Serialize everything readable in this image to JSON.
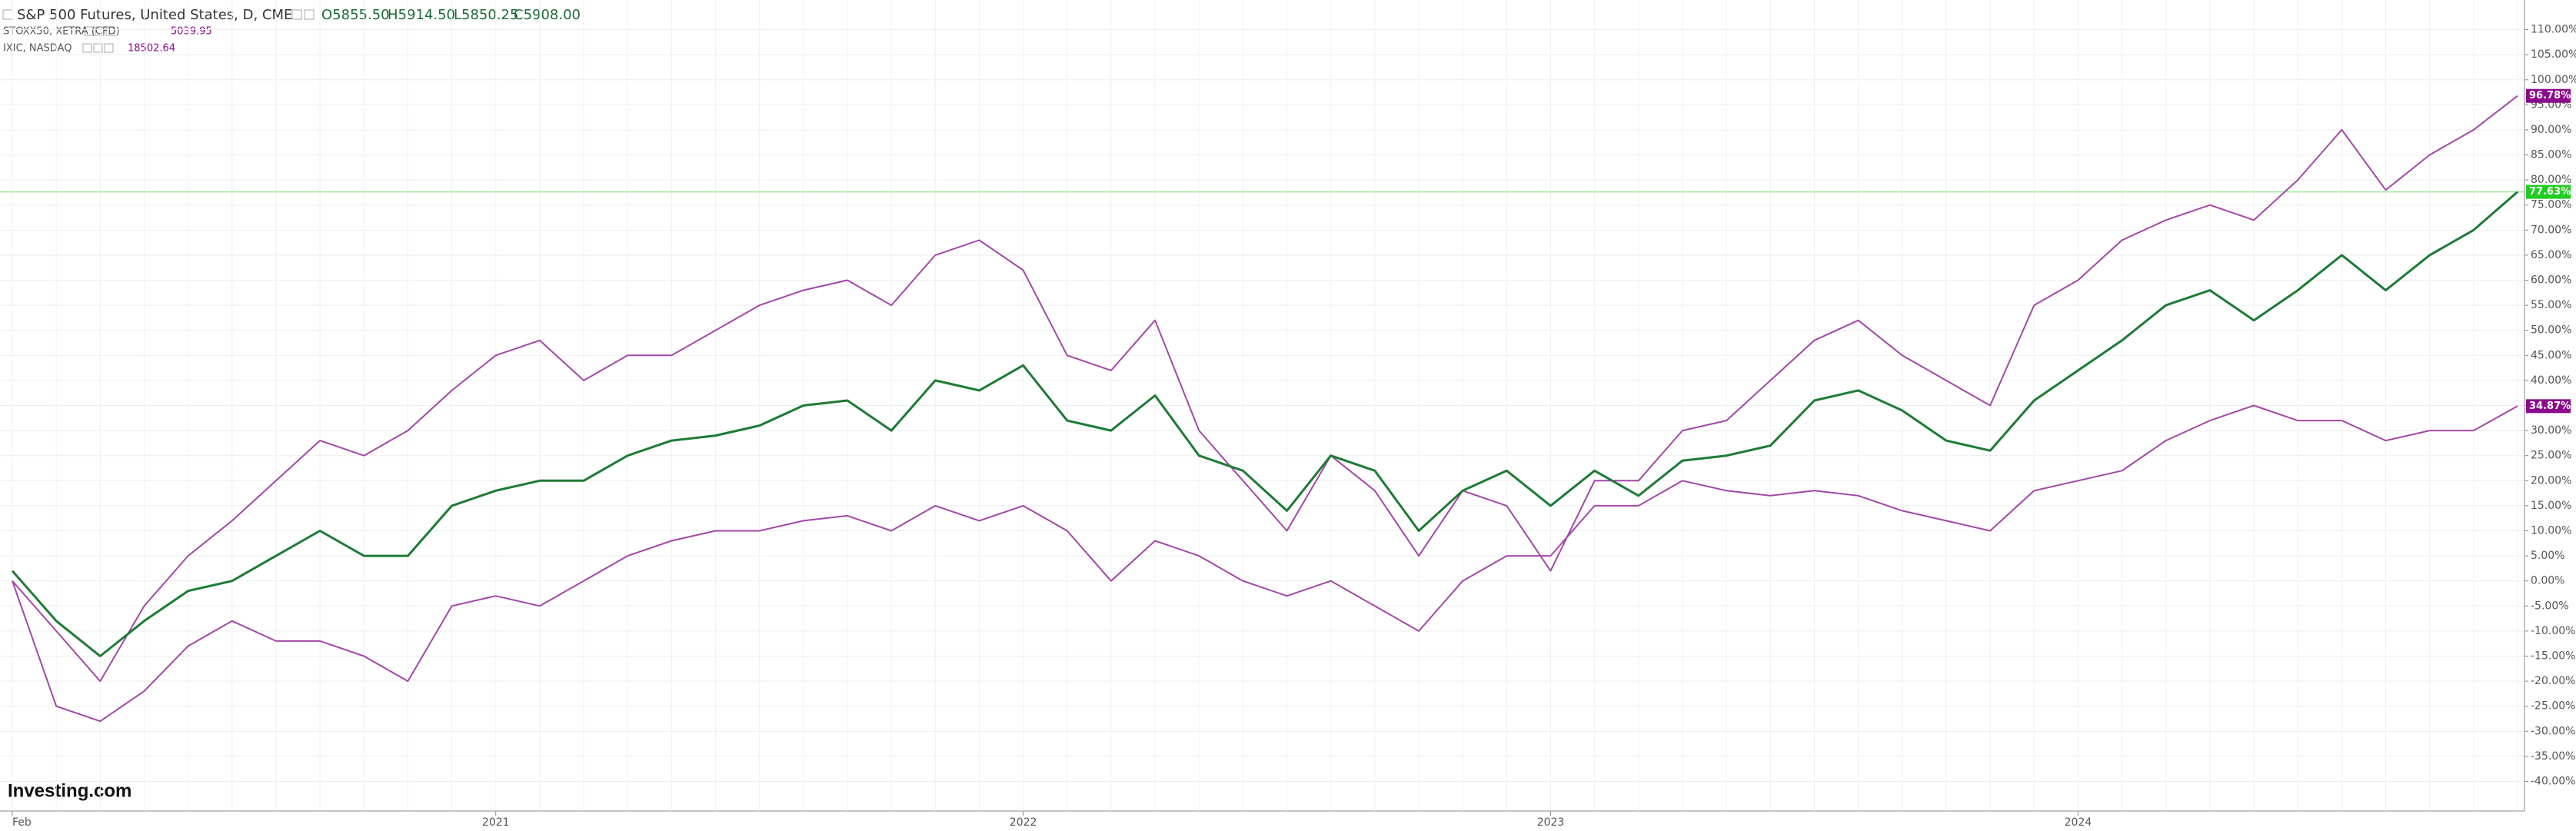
{
  "chart_data": {
    "type": "line",
    "header": {
      "main": "S&P 500 Futures, United States, D, CME",
      "quotes": [
        "O5855.50",
        "H5914.50",
        "L5850.25",
        "C5908.00"
      ]
    },
    "watermark": "Investing.com",
    "categories": [
      "Feb",
      null,
      null,
      null,
      null,
      null,
      null,
      null,
      null,
      null,
      null,
      "2021",
      null,
      null,
      null,
      null,
      null,
      null,
      null,
      null,
      null,
      null,
      null,
      "2022",
      null,
      null,
      null,
      null,
      null,
      null,
      null,
      null,
      null,
      null,
      null,
      "2023",
      null,
      null,
      null,
      null,
      null,
      null,
      null,
      null,
      null,
      null,
      null,
      "2024",
      null,
      null,
      null,
      null,
      null,
      null,
      null,
      null,
      null,
      null
    ],
    "series": [
      {
        "name": "S&P 500 Futures, United States, D, CME",
        "color": "#1e7b34",
        "values": [
          2,
          -8,
          -15,
          -8,
          -2,
          0,
          5,
          10,
          5,
          5,
          15,
          18,
          20,
          20,
          25,
          28,
          29,
          31,
          35,
          36,
          30,
          40,
          38,
          43,
          32,
          30,
          37,
          25,
          22,
          14,
          25,
          22,
          10,
          18,
          22,
          15,
          22,
          17,
          24,
          25,
          27,
          36,
          38,
          34,
          28,
          26,
          36,
          42,
          48,
          55,
          58,
          52,
          58,
          65,
          58,
          65,
          70,
          77.63
        ],
        "value_labels": [
          null,
          null,
          null,
          null,
          null,
          null,
          null,
          null,
          null,
          null,
          null,
          null,
          null,
          null,
          null,
          null,
          null,
          null,
          null,
          null,
          null,
          null,
          null,
          null,
          null,
          null,
          null,
          null,
          null,
          null,
          null,
          null,
          null,
          null,
          null,
          null,
          null,
          null,
          null,
          null,
          null,
          null,
          null,
          null,
          null,
          null,
          null,
          null,
          null,
          null,
          null,
          null,
          null,
          null,
          null,
          null,
          null,
          "77.63%"
        ],
        "label_color": "#22cc22"
      },
      {
        "name": "STOXX50, XETRA (CFD)",
        "quote": "5039.95",
        "color": "#a347a8",
        "values": [
          0,
          -25,
          -28,
          -22,
          -13,
          -8,
          -12,
          -12,
          -15,
          -20,
          -5,
          -3,
          -5,
          0,
          5,
          8,
          10,
          10,
          12,
          13,
          10,
          15,
          12,
          15,
          10,
          0,
          8,
          5,
          0,
          -3,
          0,
          -5,
          -10,
          0,
          5,
          5,
          15,
          15,
          20,
          18,
          17,
          18,
          17,
          14,
          12,
          10,
          18,
          20,
          22,
          28,
          32,
          35,
          32,
          32,
          28,
          30,
          30,
          34.87
        ],
        "value_labels": [
          null,
          null,
          null,
          null,
          null,
          null,
          null,
          null,
          null,
          null,
          null,
          null,
          null,
          null,
          null,
          null,
          null,
          null,
          null,
          null,
          null,
          null,
          null,
          null,
          null,
          null,
          null,
          null,
          null,
          null,
          null,
          null,
          null,
          null,
          null,
          null,
          null,
          null,
          null,
          null,
          null,
          null,
          null,
          null,
          null,
          null,
          null,
          null,
          null,
          null,
          null,
          null,
          null,
          null,
          null,
          null,
          null,
          "34.87%"
        ],
        "label_color": "#8b0a8b"
      },
      {
        "name": "IXIC, NASDAQ",
        "quote": "18502.64",
        "color": "#a347a8",
        "values": [
          0,
          -10,
          -20,
          -5,
          5,
          12,
          20,
          28,
          25,
          30,
          38,
          45,
          48,
          40,
          45,
          45,
          50,
          55,
          58,
          60,
          55,
          65,
          68,
          62,
          45,
          42,
          52,
          30,
          20,
          10,
          25,
          18,
          5,
          18,
          15,
          2,
          20,
          20,
          30,
          32,
          40,
          48,
          52,
          45,
          40,
          35,
          55,
          60,
          68,
          72,
          75,
          72,
          80,
          90,
          78,
          85,
          90,
          96.78
        ],
        "value_labels": [
          null,
          null,
          null,
          null,
          null,
          null,
          null,
          null,
          null,
          null,
          null,
          null,
          null,
          null,
          null,
          null,
          null,
          null,
          null,
          null,
          null,
          null,
          null,
          null,
          null,
          null,
          null,
          null,
          null,
          null,
          null,
          null,
          null,
          null,
          null,
          null,
          null,
          null,
          null,
          null,
          null,
          null,
          null,
          null,
          null,
          null,
          null,
          null,
          null,
          null,
          null,
          null,
          null,
          null,
          null,
          null,
          null,
          "96.78%"
        ],
        "label_color": "#8b0a8b"
      }
    ],
    "ylim": [
      -43,
      113
    ],
    "yticks": [
      {
        "value": -40,
        "label": "-40.00%"
      },
      {
        "value": -35,
        "label": "-35.00%"
      },
      {
        "value": -30,
        "label": "-30.00%"
      },
      {
        "value": -25,
        "label": "-25.00%"
      },
      {
        "value": -20,
        "label": "-20.00%"
      },
      {
        "value": -15,
        "label": "-15.00%"
      },
      {
        "value": -10,
        "label": "-10.00%"
      },
      {
        "value": -5,
        "label": "-5.00%"
      },
      {
        "value": 0,
        "label": "0.00%"
      },
      {
        "value": 5,
        "label": "5.00%"
      },
      {
        "value": 10,
        "label": "10.00%"
      },
      {
        "value": 15,
        "label": "15.00%"
      },
      {
        "value": 20,
        "label": "20.00%"
      },
      {
        "value": 25,
        "label": "25.00%"
      },
      {
        "value": 30,
        "label": "30.00%"
      },
      {
        "value": 35,
        "label": "35.00%"
      },
      {
        "value": 40,
        "label": "40.00%"
      },
      {
        "value": 45,
        "label": "45.00%"
      },
      {
        "value": 50,
        "label": "50.00%"
      },
      {
        "value": 55,
        "label": "55.00%"
      },
      {
        "value": 60,
        "label": "60.00%"
      },
      {
        "value": 65,
        "label": "65.00%"
      },
      {
        "value": 70,
        "label": "70.00%"
      },
      {
        "value": 75,
        "label": "75.00%"
      },
      {
        "value": 80,
        "label": "80.00%"
      },
      {
        "value": 85,
        "label": "85.00%"
      },
      {
        "value": 90,
        "label": "90.00%"
      },
      {
        "value": 95,
        "label": "95.00%"
      },
      {
        "value": 100,
        "label": "100.00%"
      },
      {
        "value": 105,
        "label": "105.00%"
      },
      {
        "value": 110,
        "label": "110.00%"
      }
    ],
    "grid": true
  }
}
